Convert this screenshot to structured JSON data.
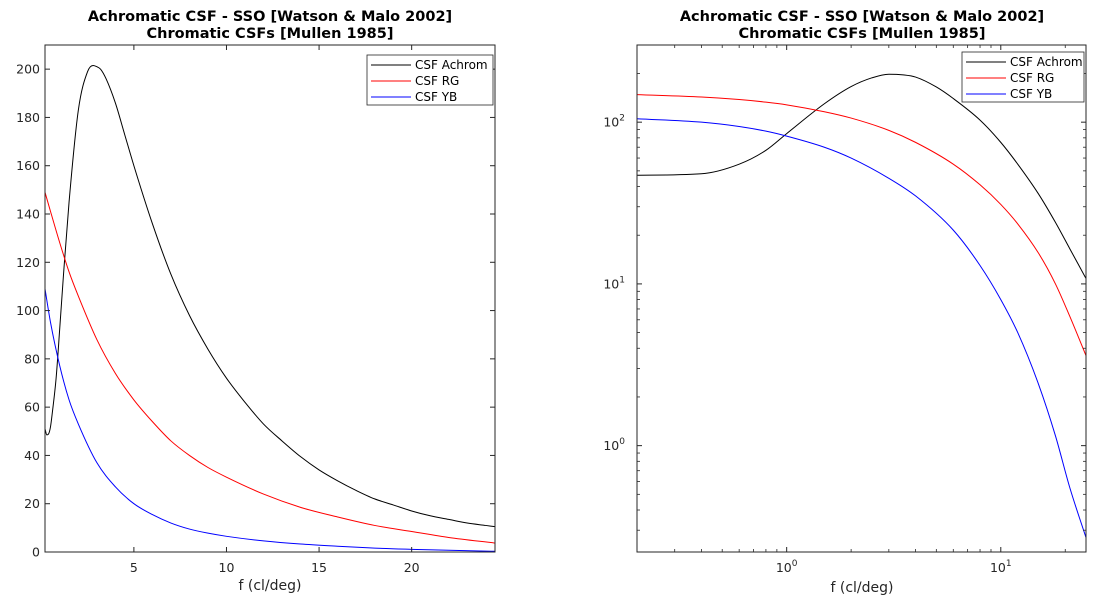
{
  "chart_data": [
    {
      "type": "line",
      "title": [
        "Achromatic CSF - SSO [Watson & Malo 2002]",
        "Chromatic CSFs [Mullen 1985]"
      ],
      "xlabel": "f (cl/deg)",
      "ylabel": "",
      "xscale": "linear",
      "yscale": "linear",
      "xlim": [
        0.2,
        24.5
      ],
      "ylim": [
        0,
        210
      ],
      "xticks": [
        5,
        10,
        15,
        20
      ],
      "xtick_labels": [
        "5",
        "10",
        "15",
        "20"
      ],
      "yticks": [
        0,
        20,
        40,
        60,
        80,
        100,
        120,
        140,
        160,
        180,
        200
      ],
      "ytick_labels": [
        "0",
        "20",
        "40",
        "60",
        "80",
        "100",
        "120",
        "140",
        "160",
        "180",
        "200"
      ],
      "legend_position": "top-right",
      "series": [
        {
          "name": "CSF Achrom",
          "color": "#000000",
          "x": [
            0.2,
            0.3,
            0.4,
            0.5,
            0.6,
            0.8,
            1.0,
            1.2,
            1.5,
            2.0,
            2.5,
            2.8,
            3.0,
            3.2,
            3.5,
            4.0,
            4.5,
            5.0,
            6.0,
            7.0,
            8.0,
            9.0,
            10.0,
            11.0,
            12.0,
            13.0,
            14.0,
            15.0,
            16.0,
            17.0,
            18.0,
            19.0,
            20.0,
            21.0,
            22.0,
            23.0,
            24.0,
            24.5
          ],
          "y": [
            51,
            48.5,
            49,
            52,
            58,
            72,
            93,
            115,
            145,
            183,
            199,
            201.5,
            201,
            200,
            196,
            186,
            173,
            160,
            136,
            115,
            98,
            84,
            72,
            62,
            53,
            46,
            39.5,
            34,
            29.5,
            25.5,
            22,
            19.5,
            17,
            15,
            13.5,
            12,
            11,
            10.5
          ]
        },
        {
          "name": "CSF RG",
          "color": "#ff0000",
          "x": [
            0.2,
            0.5,
            1.0,
            1.5,
            2.0,
            3.0,
            4.0,
            5.0,
            6.0,
            7.0,
            8.0,
            9.0,
            10.0,
            12.0,
            14.0,
            16.0,
            18.0,
            20.0,
            22.0,
            24.5
          ],
          "y": [
            149,
            141,
            128,
            116,
            106,
            88,
            74,
            63,
            54,
            46,
            40,
            35,
            31,
            24,
            18.5,
            14.5,
            11,
            8.5,
            6,
            3.7
          ]
        },
        {
          "name": "CSF YB",
          "color": "#0000ff",
          "x": [
            0.2,
            0.5,
            1.0,
            1.5,
            2.0,
            3.0,
            4.0,
            5.0,
            6.0,
            7.0,
            8.0,
            9.0,
            10.0,
            12.0,
            14.0,
            16.0,
            18.0,
            20.0,
            22.0,
            24.5
          ],
          "y": [
            109,
            95,
            77,
            63,
            53,
            37,
            27,
            20,
            15.5,
            12,
            9.5,
            7.8,
            6.5,
            4.6,
            3.3,
            2.4,
            1.6,
            1.1,
            0.7,
            0.3
          ]
        }
      ]
    },
    {
      "type": "line",
      "title": [
        "Achromatic CSF - SSO [Watson & Malo 2002]",
        "Chromatic CSFs [Mullen 1985]"
      ],
      "xlabel": "f (cl/deg)",
      "ylabel": "",
      "xscale": "log",
      "yscale": "log",
      "xlim": [
        0.2,
        25
      ],
      "ylim": [
        0.22,
        300
      ],
      "xticks": [
        1,
        10
      ],
      "xtick_labels": [
        {
          "base": "10",
          "exp": "0"
        },
        {
          "base": "10",
          "exp": "1"
        }
      ],
      "yticks": [
        1,
        10,
        100
      ],
      "ytick_labels": [
        {
          "base": "10",
          "exp": "0"
        },
        {
          "base": "10",
          "exp": "1"
        },
        {
          "base": "10",
          "exp": "2"
        }
      ],
      "legend_position": "top-right",
      "series": [
        {
          "name": "CSF Achrom",
          "color": "#000000",
          "x": [
            0.2,
            0.4,
            0.6,
            0.8,
            1.0,
            1.5,
            2.0,
            2.5,
            3.0,
            3.5,
            4.0,
            5.0,
            6.0,
            8.0,
            10.0,
            12.0,
            15.0,
            18.0,
            21.0,
            25.0
          ],
          "y": [
            47,
            48,
            55,
            67,
            85,
            130,
            166,
            188,
            198,
            196,
            190,
            165,
            140,
            103,
            75,
            55,
            36,
            24,
            16.5,
            10.8
          ]
        },
        {
          "name": "CSF RG",
          "color": "#ff0000",
          "x": [
            0.2,
            0.4,
            0.6,
            0.8,
            1.0,
            1.5,
            2.0,
            3.0,
            4.0,
            6.0,
            8.0,
            10.0,
            12.0,
            15.0,
            18.0,
            21.0,
            25.0
          ],
          "y": [
            148,
            143,
            138,
            133,
            128,
            116,
            106,
            89,
            75,
            55,
            41,
            31,
            23.5,
            15.5,
            10,
            6.3,
            3.6
          ]
        },
        {
          "name": "CSF YB",
          "color": "#0000ff",
          "x": [
            0.2,
            0.4,
            0.6,
            0.8,
            1.0,
            1.5,
            2.0,
            3.0,
            4.0,
            6.0,
            8.0,
            10.0,
            12.0,
            15.0,
            18.0,
            21.0,
            25.0
          ],
          "y": [
            105,
            100,
            94,
            88,
            82,
            70,
            60,
            45,
            35,
            21.5,
            13,
            8,
            5,
            2.4,
            1.15,
            0.55,
            0.27
          ]
        }
      ]
    }
  ]
}
